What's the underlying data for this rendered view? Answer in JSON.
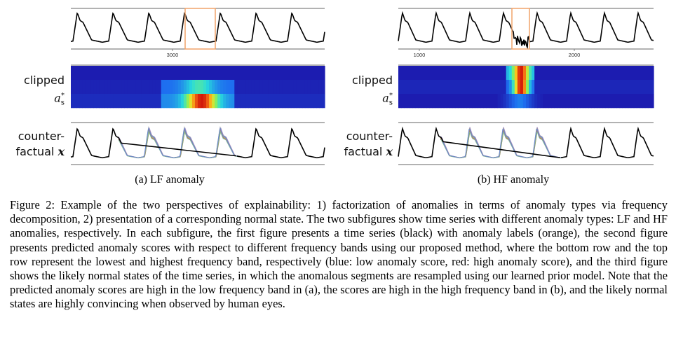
{
  "panel_a": {
    "label_row2_line1": "clipped",
    "label_row2_line2": "a",
    "label_row2_sub": "s",
    "label_row2_sup": "*",
    "label_row3_line1": "counter-",
    "label_row3_line2": "factual",
    "label_row3_var": "x",
    "tick_label": "3000",
    "caption": "(a) LF anomaly",
    "anomaly_type": "LF"
  },
  "panel_b": {
    "label_row2_line1": "clipped",
    "label_row2_line2": "a",
    "label_row2_sub": "s",
    "label_row2_sup": "*",
    "label_row3_line1": "counter-",
    "label_row3_line2": "factual",
    "label_row3_var": "x",
    "tick_label_1": "1000",
    "tick_label_2": "2000",
    "caption": "(b) HF anomaly",
    "anomaly_type": "HF"
  },
  "figure_caption": "Figure 2: Example of the two perspectives of explainability: 1) factorization of anomalies in terms of anomaly types via frequency decomposition, 2) presentation of a corresponding normal state. The two subfigures show time series with different anomaly types: LF and HF anomalies, respectively. In each subfigure, the first figure presents a time series (black) with anomaly labels (orange), the second figure presents predicted anomaly scores with respect to different frequency bands using our proposed method, where the bottom row and the top row represent the lowest and highest frequency band, respectively (blue: low anomaly score, red: high anomaly score), and the third figure shows the likely normal states of the time series, in which the anomalous segments are resampled using our learned prior model. Note that the predicted anomaly scores are high in the low frequency band in (a), the scores are high in the high frequency band in (b), and the likely normal states are highly convincing when observed by human eyes.",
  "colors": {
    "series": "#000000",
    "anomaly_label": "#f0a36a",
    "heatmap_low": "#1c1cb0",
    "heatmap_high": "#d21a0a"
  }
}
